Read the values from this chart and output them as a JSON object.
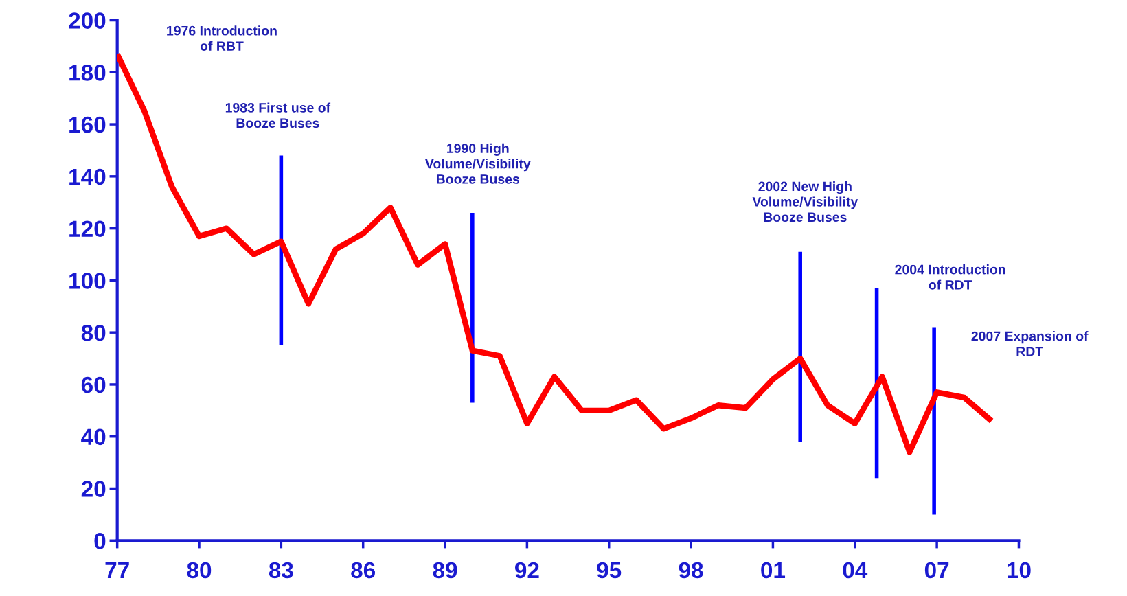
{
  "chart_data": {
    "type": "line",
    "x": [
      1977,
      1978,
      1979,
      1980,
      1981,
      1982,
      1983,
      1984,
      1985,
      1986,
      1987,
      1988,
      1989,
      1990,
      1991,
      1992,
      1993,
      1994,
      1995,
      1996,
      1997,
      1998,
      1999,
      2000,
      2001,
      2002,
      2003,
      2004,
      2005,
      2006,
      2007,
      2008,
      2009
    ],
    "series": [
      {
        "color": "#ff0000",
        "values": [
          187,
          165,
          136,
          117,
          120,
          110,
          115,
          91,
          112,
          118,
          128,
          106,
          114,
          73,
          71,
          45,
          63,
          50,
          50,
          54,
          43,
          47,
          52,
          51,
          62,
          70,
          52,
          45,
          63,
          34,
          57,
          55,
          46
        ]
      },
      {
        "color": "#0000ff",
        "x": [
          1983,
          1983
        ],
        "values": [
          75,
          148
        ]
      },
      {
        "color": "#0000ff",
        "x": [
          1990,
          1990
        ],
        "values": [
          53,
          126
        ]
      },
      {
        "color": "#0000ff",
        "x": [
          2002,
          2002
        ],
        "values": [
          38,
          111
        ]
      },
      {
        "color": "#0000ff",
        "x": [
          2004.8,
          2004.8
        ],
        "values": [
          24,
          97
        ]
      },
      {
        "color": "#0000ff",
        "x": [
          2006.9,
          2006.9
        ],
        "values": [
          10,
          82
        ]
      }
    ],
    "xlim": [
      1977,
      2010
    ],
    "xticks": [
      {
        "value": 1977,
        "label": "77"
      },
      {
        "value": 1980,
        "label": "80"
      },
      {
        "value": 1983,
        "label": "83"
      },
      {
        "value": 1986,
        "label": "86"
      },
      {
        "value": 1989,
        "label": "89"
      },
      {
        "value": 1992,
        "label": "92"
      },
      {
        "value": 1995,
        "label": "95"
      },
      {
        "value": 1998,
        "label": "98"
      },
      {
        "value": 2001,
        "label": "01"
      },
      {
        "value": 2004,
        "label": "04"
      },
      {
        "value": 2007,
        "label": "07"
      },
      {
        "value": 2010,
        "label": "10"
      }
    ],
    "ylim": [
      0,
      200
    ],
    "yticks": [
      0,
      20,
      40,
      60,
      80,
      100,
      120,
      140,
      160,
      180,
      200
    ],
    "grid": false,
    "annotations": [
      "1976 Introduction\nof RBT",
      "1983 First use of\nBooze Buses",
      "1990 High\nVolume/Visibility\nBooze Buses",
      "2002 New High\nVolume/Visibility\nBooze Buses",
      "2004 Introduction\nof RDT",
      "2007 Expansion of\nRDT"
    ]
  }
}
